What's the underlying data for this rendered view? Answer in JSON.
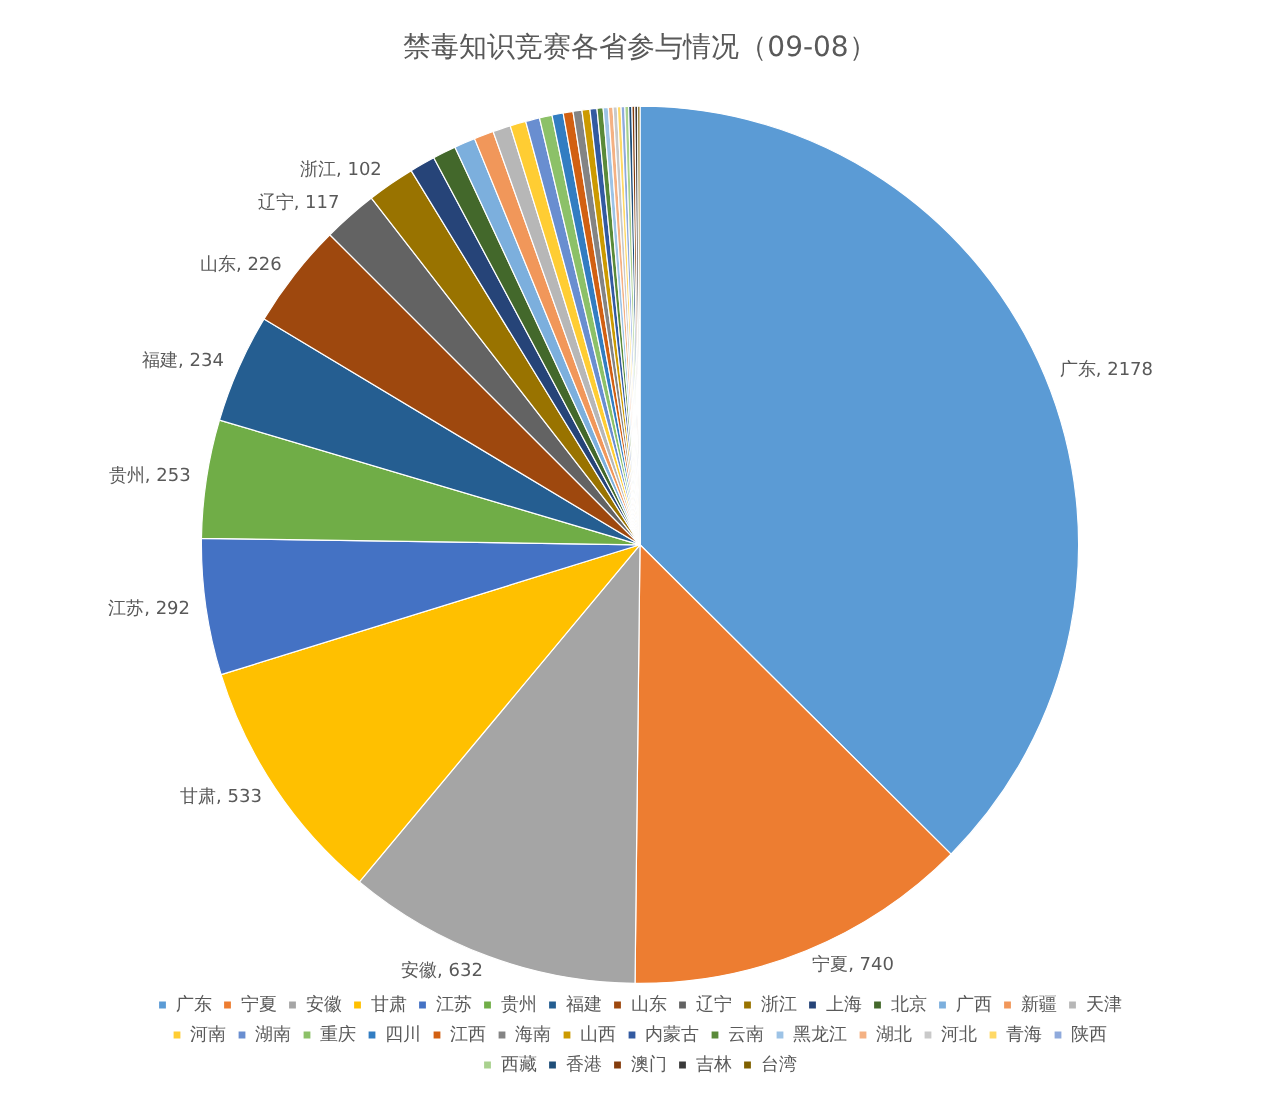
{
  "chart_data": {
    "type": "pie",
    "title": "禁毒知识竞赛各省参与情况（09-08）",
    "categories": [
      "广东",
      "宁夏",
      "安徽",
      "甘肃",
      "江苏",
      "贵州",
      "福建",
      "山东",
      "辽宁",
      "浙江",
      "上海",
      "北京",
      "广西",
      "新疆",
      "天津",
      "河南",
      "湖南",
      "重庆",
      "四川",
      "江西",
      "海南",
      "山西",
      "内蒙古",
      "云南",
      "黑龙江",
      "湖北",
      "河北",
      "青海",
      "陕西",
      "西藏",
      "香港",
      "澳门",
      "吉林",
      "台湾"
    ],
    "values": [
      2178,
      740,
      632,
      533,
      292,
      253,
      234,
      226,
      117,
      102,
      55,
      50,
      45,
      42,
      38,
      34,
      30,
      27,
      24,
      21,
      19,
      17,
      15,
      13,
      11,
      10,
      9,
      8,
      8,
      8,
      7,
      6,
      6,
      5
    ],
    "value_labels": [
      "广东, 2178",
      "宁夏, 740",
      "安徽, 632",
      "甘肃, 533",
      "江苏, 292",
      "贵州, 253",
      "福建, 234",
      "山东, 226",
      "辽宁, 117",
      "浙江, 102",
      null,
      null,
      null,
      null,
      null,
      null,
      null,
      null,
      null,
      null,
      null,
      null,
      null,
      null,
      null,
      null,
      null,
      null,
      null,
      null,
      null,
      null,
      null,
      null
    ],
    "colors": [
      "#5b9bd5",
      "#ed7d31",
      "#a5a5a5",
      "#ffc000",
      "#4472c4",
      "#70ad47",
      "#255e91",
      "#9e480e",
      "#636363",
      "#997300",
      "#264478",
      "#43682b",
      "#7cafdd",
      "#f1975a",
      "#b7b7b7",
      "#ffcd33",
      "#698ed0",
      "#8cc168",
      "#327dc2",
      "#d26012",
      "#848484",
      "#cc9a00",
      "#335aa1",
      "#5a8a39",
      "#9dc3e6",
      "#f4b183",
      "#c9c9c9",
      "#ffd966",
      "#8faadc",
      "#a9d18e",
      "#1f4e79",
      "#843c0c",
      "#3a3a3a",
      "#7f6000"
    ],
    "legend": "bottom"
  }
}
